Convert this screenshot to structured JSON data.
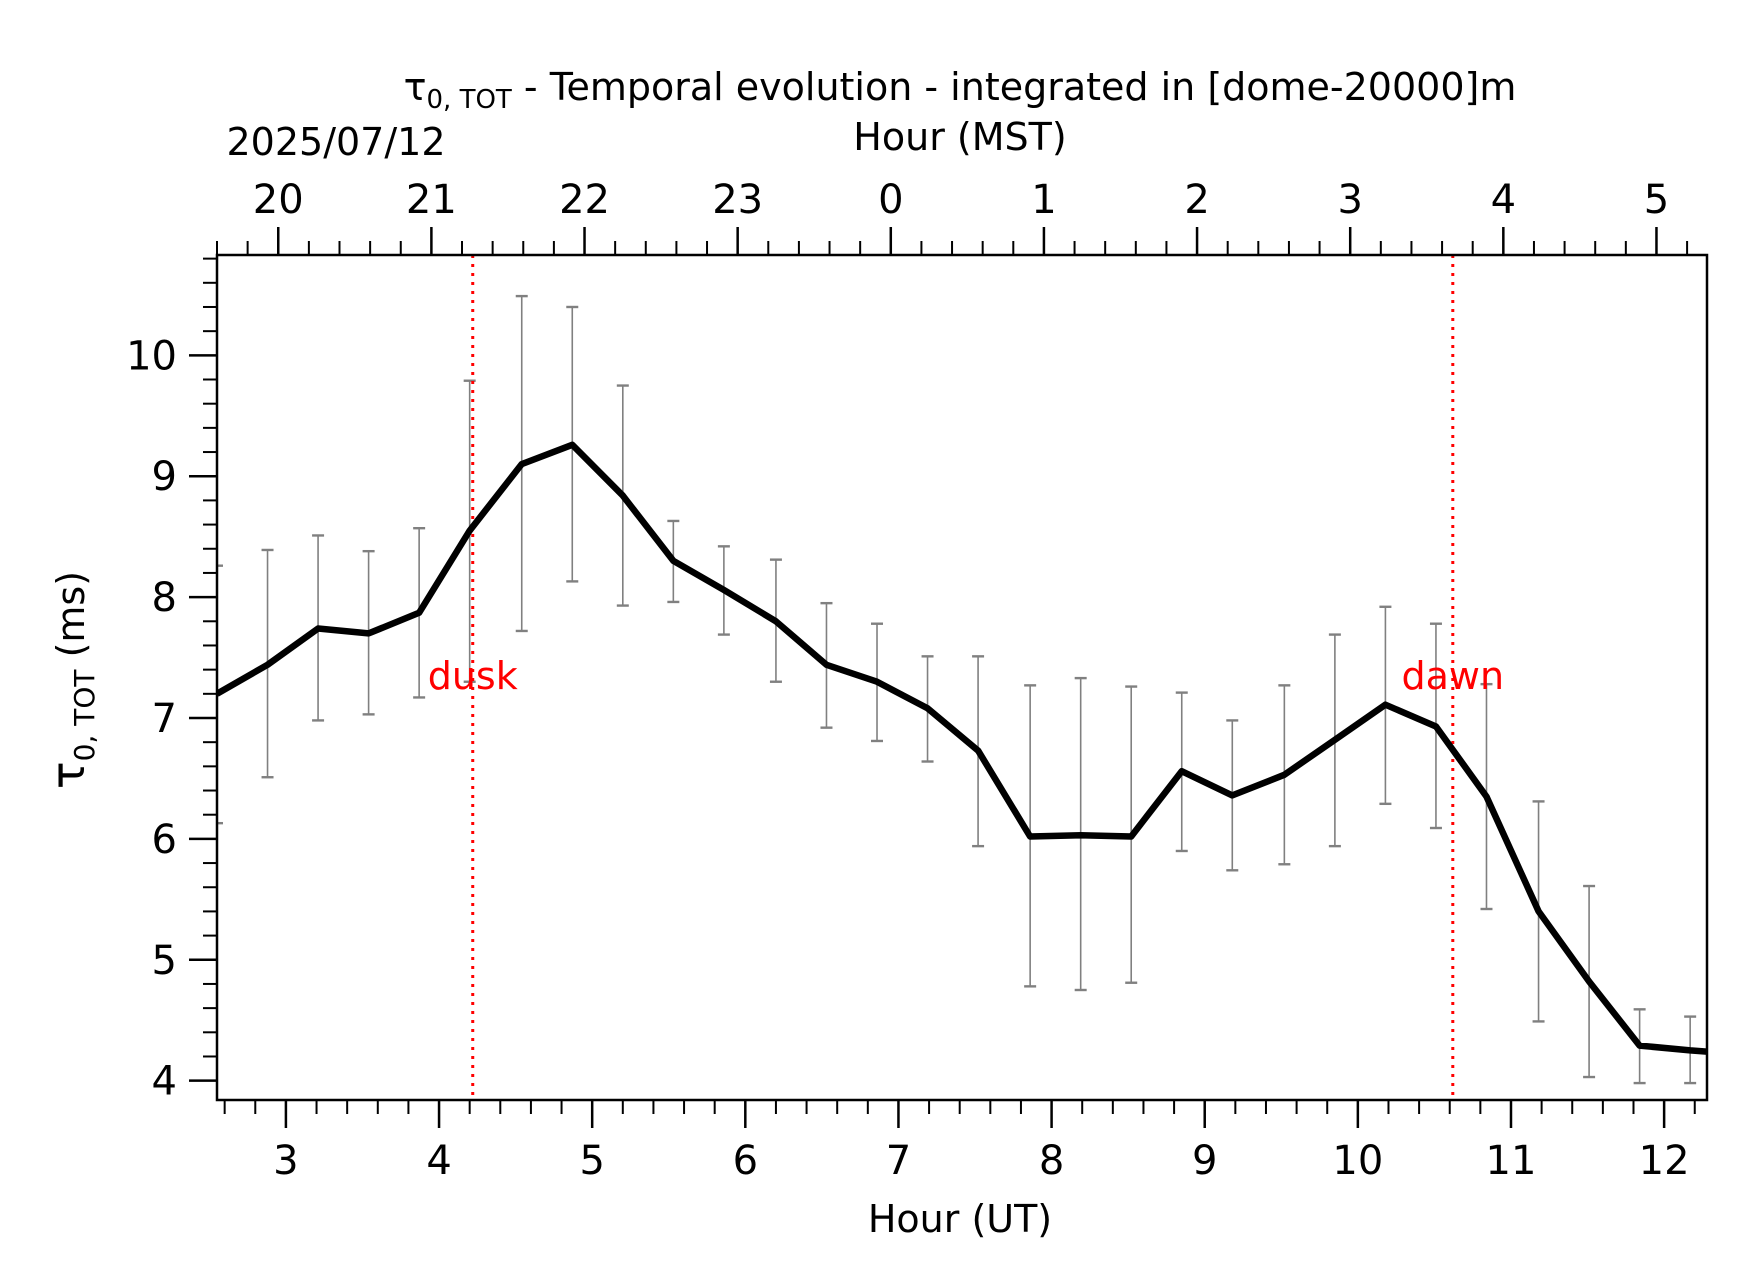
{
  "chart_data": {
    "type": "line",
    "title": {
      "symbol": "τ",
      "subscript": "0, TOT",
      "rest": " - Temporal evolution - integrated in [dome-20000]m"
    },
    "date": "2025/07/12",
    "xlabel_bottom": "Hour (UT)",
    "xlabel_top": "Hour (MST)",
    "ylabel": {
      "symbol": "τ",
      "subscript": "0, TOT",
      "rest": " (ms)"
    },
    "xlim": [
      2.55,
      12.28
    ],
    "ylim": [
      3.84,
      10.83
    ],
    "x_ticks": [
      3,
      4,
      5,
      6,
      7,
      8,
      9,
      10,
      11,
      12
    ],
    "x_tick_labels": [
      "3",
      "4",
      "5",
      "6",
      "7",
      "8",
      "9",
      "10",
      "11",
      "12"
    ],
    "top_ticks": [
      2.95,
      3.95,
      4.95,
      5.95,
      6.95,
      7.95,
      8.95,
      9.95,
      10.95,
      11.95
    ],
    "top_tick_labels": [
      "20",
      "21",
      "22",
      "23",
      "0",
      "1",
      "2",
      "3",
      "4",
      "5"
    ],
    "y_ticks": [
      4,
      5,
      6,
      7,
      8,
      9,
      10
    ],
    "y_tick_labels": [
      "4",
      "5",
      "6",
      "7",
      "8",
      "9",
      "10"
    ],
    "grid": false,
    "colors": {
      "line": "#000000",
      "errorbar": "#808080",
      "marker_line": "#ff0000",
      "marker_text": "#ff0000"
    },
    "series": [
      {
        "x": [
          2.55,
          2.88,
          3.21,
          3.54,
          3.87,
          4.2,
          4.54,
          4.87,
          5.2,
          5.53,
          5.86,
          6.2,
          6.53,
          6.86,
          7.19,
          7.52,
          7.86,
          8.19,
          8.52,
          8.85,
          9.18,
          9.52,
          9.85,
          10.18,
          10.51,
          10.84,
          11.18,
          11.51,
          11.84,
          12.17,
          12.28
        ],
        "y": [
          7.2,
          7.44,
          7.74,
          7.7,
          7.87,
          8.55,
          9.1,
          9.26,
          8.84,
          8.3,
          8.06,
          7.8,
          7.44,
          7.3,
          7.08,
          6.73,
          6.02,
          6.03,
          6.02,
          6.56,
          6.36,
          6.53,
          6.82,
          7.11,
          6.93,
          6.35,
          5.4,
          4.82,
          4.29,
          4.25,
          4.24
        ],
        "err_low": [
          6.13,
          6.51,
          6.98,
          7.03,
          7.17,
          7.3,
          7.72,
          8.13,
          7.93,
          7.96,
          7.69,
          7.3,
          6.92,
          6.81,
          6.64,
          5.94,
          4.78,
          4.75,
          4.81,
          5.9,
          5.74,
          5.79,
          5.94,
          6.29,
          6.09,
          5.42,
          4.49,
          4.03,
          3.98,
          3.98,
          null
        ],
        "err_high": [
          8.26,
          8.39,
          8.51,
          8.38,
          8.57,
          9.79,
          10.49,
          10.4,
          9.75,
          8.63,
          8.42,
          8.31,
          7.95,
          7.78,
          7.51,
          7.51,
          7.27,
          7.33,
          7.26,
          7.21,
          6.98,
          7.27,
          7.69,
          7.92,
          7.78,
          7.28,
          6.31,
          5.61,
          4.59,
          4.53,
          null
        ]
      }
    ],
    "vertical_markers": [
      {
        "x": 4.22,
        "label": "dusk"
      },
      {
        "x": 10.62,
        "label": "dawn"
      }
    ]
  }
}
